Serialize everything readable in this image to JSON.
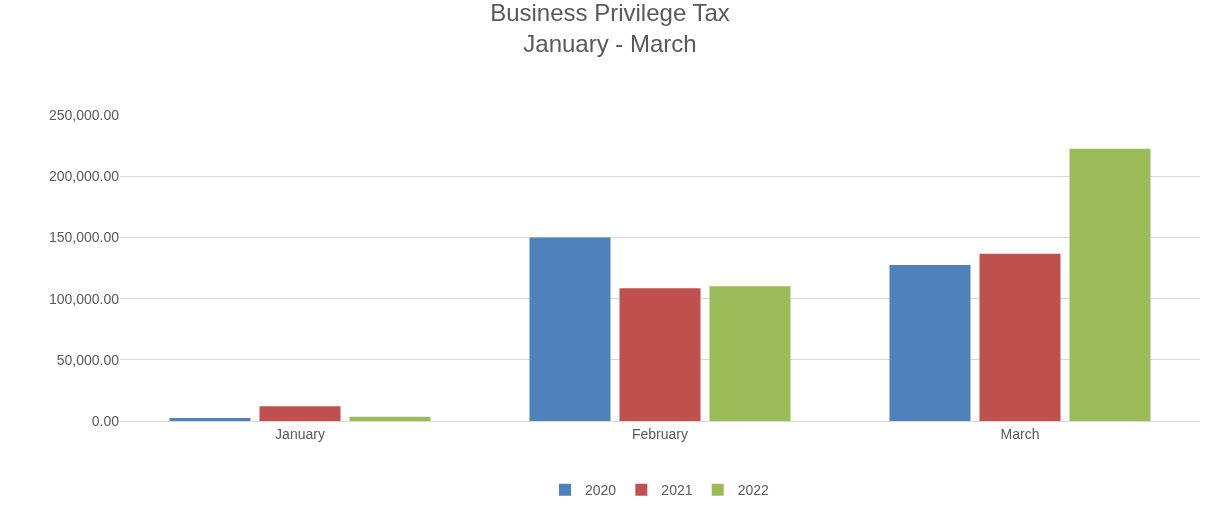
{
  "chart_data": {
    "type": "bar",
    "title": "Business Privilege Tax",
    "subtitle": "January - March",
    "categories": [
      "January",
      "February",
      "March"
    ],
    "series": [
      {
        "name": "2020",
        "color": "#4f81bd",
        "values": [
          2500,
          150000,
          127500
        ]
      },
      {
        "name": "2021",
        "color": "#c0504d",
        "values": [
          12000,
          108400,
          136600
        ]
      },
      {
        "name": "2022",
        "color": "#9bbb59",
        "values": [
          3500,
          110000,
          222400
        ]
      }
    ],
    "ylim": [
      0,
      250000
    ],
    "yticks": [
      {
        "value": 0,
        "label": "0.00"
      },
      {
        "value": 50000,
        "label": "50,000.00"
      },
      {
        "value": 100000,
        "label": "100,000.00"
      },
      {
        "value": 150000,
        "label": "150,000.00"
      },
      {
        "value": 200000,
        "label": "200,000.00"
      },
      {
        "value": 250000,
        "label": "250,000.00"
      }
    ],
    "grid": "y",
    "legend": "bottom"
  }
}
